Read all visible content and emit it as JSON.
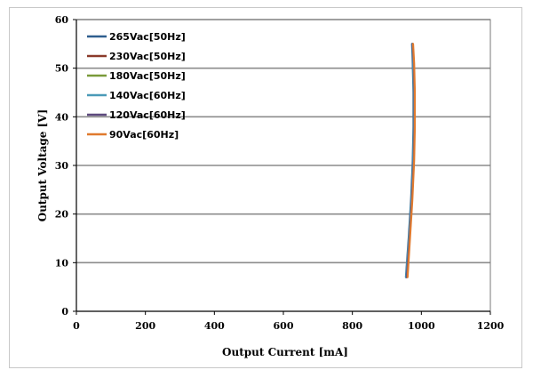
{
  "chart_data": {
    "type": "line",
    "title": "",
    "xlabel": "Output Current [mA]",
    "ylabel": "Output  Voltage  [V]",
    "xlim": [
      0,
      1200
    ],
    "ylim": [
      0,
      60
    ],
    "xticks": [
      "0",
      "200",
      "400",
      "600",
      "800",
      "1000",
      "1200"
    ],
    "yticks": [
      "0",
      "10",
      "20",
      "30",
      "40",
      "50",
      "60"
    ],
    "grid": "horizontal",
    "legend_position": "top-left",
    "series": [
      {
        "name": "265Vac[50Hz]",
        "color": "#2e5e8e",
        "x": [
          955,
          963,
          970,
          975,
          977,
          977,
          975,
          973
        ],
        "y": [
          7,
          15,
          23,
          31,
          38,
          45,
          51,
          55
        ]
      },
      {
        "name": "230Vac[50Hz]",
        "color": "#8b3a2a",
        "x": [
          957,
          964,
          971,
          976,
          978,
          978,
          976,
          974
        ],
        "y": [
          7,
          15,
          23,
          31,
          38,
          45,
          51,
          55
        ]
      },
      {
        "name": "180Vac[50Hz]",
        "color": "#7a9a3a",
        "x": [
          958,
          965,
          972,
          977,
          979,
          979,
          977,
          975
        ],
        "y": [
          7,
          15,
          23,
          31,
          38,
          45,
          51,
          55
        ]
      },
      {
        "name": "140Vac[60Hz]",
        "color": "#4a9ab8",
        "x": [
          956,
          964,
          971,
          976,
          978,
          978,
          976,
          974
        ],
        "y": [
          7,
          15,
          23,
          31,
          38,
          45,
          51,
          55
        ]
      },
      {
        "name": "120Vac[60Hz]",
        "color": "#5e4a7e",
        "x": [
          958,
          966,
          973,
          978,
          980,
          980,
          978,
          975
        ],
        "y": [
          7,
          15,
          23,
          31,
          38,
          45,
          51,
          55
        ]
      },
      {
        "name": "90Vac[60Hz]",
        "color": "#e07a2e",
        "x": [
          960,
          967,
          974,
          979,
          981,
          981,
          979,
          976
        ],
        "y": [
          7,
          15,
          23,
          31,
          38,
          45,
          51,
          55
        ]
      }
    ]
  }
}
